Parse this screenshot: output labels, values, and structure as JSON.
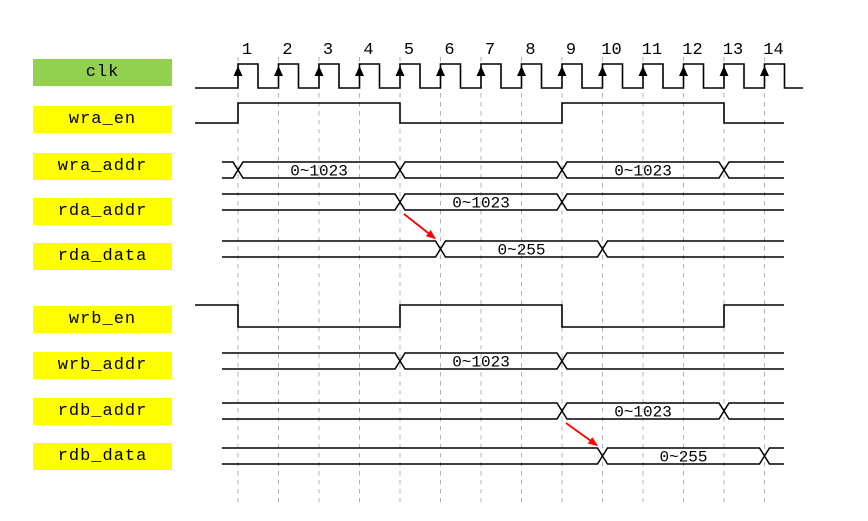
{
  "diagram": {
    "type": "timing-diagram",
    "clock": {
      "label": "clk",
      "cycle_numbers": [
        "1",
        "2",
        "3",
        "4",
        "5",
        "6",
        "7",
        "8",
        "9",
        "10",
        "11",
        "12",
        "13",
        "14"
      ]
    },
    "signals": [
      {
        "name": "wra_en",
        "kind": "logic",
        "initial": "low",
        "toggle_cycles": [
          1,
          5,
          9,
          13
        ]
      },
      {
        "name": "wra_addr",
        "kind": "bus",
        "transition_cycles": [
          1,
          5,
          9,
          13
        ],
        "values": [
          {
            "from": 1,
            "to": 5,
            "text": "0~1023"
          },
          {
            "from": 9,
            "to": 13,
            "text": "0~1023"
          }
        ]
      },
      {
        "name": "rda_addr",
        "kind": "bus",
        "transition_cycles": [
          5,
          9
        ],
        "values": [
          {
            "from": 5,
            "to": 9,
            "text": "0~1023"
          }
        ]
      },
      {
        "name": "rda_data",
        "kind": "bus",
        "transition_cycles": [
          6,
          10
        ],
        "values": [
          {
            "from": 6,
            "to": 10,
            "text": "0~255"
          }
        ]
      },
      {
        "name": "wrb_en",
        "kind": "logic",
        "initial": "high",
        "toggle_cycles": [
          1,
          5,
          9,
          13
        ]
      },
      {
        "name": "wrb_addr",
        "kind": "bus",
        "transition_cycles": [
          5,
          9
        ],
        "values": [
          {
            "from": 5,
            "to": 9,
            "text": "0~1023"
          }
        ]
      },
      {
        "name": "rdb_addr",
        "kind": "bus",
        "transition_cycles": [
          9,
          13
        ],
        "values": [
          {
            "from": 9,
            "to": 13,
            "text": "0~1023"
          }
        ]
      },
      {
        "name": "rdb_data",
        "kind": "bus",
        "transition_cycles": [
          10,
          14
        ],
        "values": [
          {
            "from": 10,
            "to": 14,
            "text": "0~255"
          }
        ]
      }
    ],
    "arrows": [
      {
        "from_signal": "rda_addr",
        "from_cycle": 5,
        "to_signal": "rda_data",
        "to_cycle": 6
      },
      {
        "from_signal": "rdb_addr",
        "from_cycle": 9,
        "to_signal": "rdb_data",
        "to_cycle": 10
      }
    ],
    "colors": {
      "clk_label_bg": "#92D050",
      "signal_label_bg": "#FFFF00",
      "waveform": "#000000",
      "gridline": "#B3B3B3",
      "arrow": "#FF0000",
      "label_text": "#000000"
    }
  }
}
